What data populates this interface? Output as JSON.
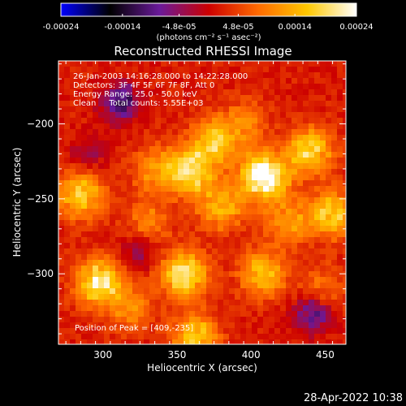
{
  "chart_data": {
    "type": "heatmap",
    "title": "Reconstructed RHESSI Image",
    "xlabel": "Heliocentric X (arcsec)",
    "ylabel": "Heliocentric Y (arcsec)",
    "xlim": [
      270,
      464
    ],
    "ylim": [
      -347,
      -158
    ],
    "xticks": [
      300,
      350,
      400,
      450
    ],
    "yticks": [
      -200,
      -250,
      -300
    ],
    "colorbar": {
      "min": -0.00024,
      "max": 0.00024,
      "tick_values": [
        -0.00024,
        -0.00014,
        -4.8e-05,
        4.8e-05,
        0.00014,
        0.00024
      ],
      "tick_labels": [
        "-0.00024",
        "-0.00014",
        "-4.8e-05",
        "4.8e-05",
        "0.00014",
        "0.00024"
      ],
      "units_label": "(photons cm⁻² s⁻¹ asec⁻²)",
      "colormap": [
        "#0000ff",
        "#000000",
        "#6a1a9a",
        "#cc0000",
        "#ff6a00",
        "#ffc800",
        "#ffffff"
      ]
    },
    "annotations": [
      "26-Jan-2003 14:16:28.000 to 14:22:28.000",
      "Detectors: 3F 4F 5F 6F 7F 8F, Att 0",
      "Energy Range: 25.0 - 50.0 keV",
      "Clean     Total counts: 5.55E+03"
    ],
    "peak_label": "Position of Peak = [409,-235]",
    "peak": {
      "x": 409,
      "y": -235
    },
    "hotspots": [
      {
        "x": 409,
        "y": -235,
        "v": 0.00024
      },
      {
        "x": 358,
        "y": -232,
        "v": 0.00018
      },
      {
        "x": 440,
        "y": -218,
        "v": 0.00016
      },
      {
        "x": 375,
        "y": -212,
        "v": 0.00014
      },
      {
        "x": 455,
        "y": -260,
        "v": 0.00016
      },
      {
        "x": 285,
        "y": -247,
        "v": 0.00016
      },
      {
        "x": 297,
        "y": -305,
        "v": 0.00019
      },
      {
        "x": 355,
        "y": -300,
        "v": 0.00019
      },
      {
        "x": 380,
        "y": -255,
        "v": 0.00013
      },
      {
        "x": 425,
        "y": -265,
        "v": 0.0001
      },
      {
        "x": 408,
        "y": -300,
        "v": 0.00014
      },
      {
        "x": 362,
        "y": -343,
        "v": 0.00016
      },
      {
        "x": 330,
        "y": -265,
        "v": 8e-05
      },
      {
        "x": 395,
        "y": -200,
        "v": 8e-05
      },
      {
        "x": 318,
        "y": -322,
        "v": 9e-05
      },
      {
        "x": 448,
        "y": -310,
        "v": 7e-05
      },
      {
        "x": 335,
        "y": -230,
        "v": 9e-05
      }
    ],
    "coldspots": [
      {
        "x": 312,
        "y": -185,
        "v": -0.00014
      },
      {
        "x": 442,
        "y": -326,
        "v": -0.00012
      },
      {
        "x": 290,
        "y": -220,
        "v": -6e-05
      },
      {
        "x": 325,
        "y": -285,
        "v": -7e-05
      }
    ]
  },
  "footer": {
    "date": "28-Apr-2022 10:38"
  }
}
